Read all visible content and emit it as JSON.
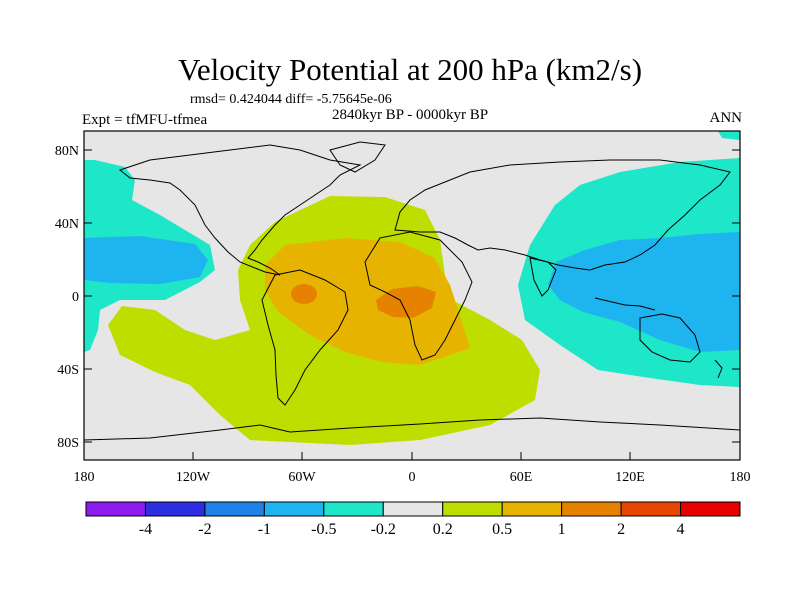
{
  "title": "Velocity Potential at 200 hPa (km2/s)",
  "stats_line": "rmsd= 0.424044 diff= -5.75645e-06",
  "period": "2840kyr BP - 0000kyr BP",
  "experiment": "Expt = tfMFU-tfmea",
  "season": "ANN",
  "lat_ticks": [
    "80N",
    "40N",
    "0",
    "40S",
    "80S"
  ],
  "lon_ticks": [
    "180",
    "120W",
    "60W",
    "0",
    "60E",
    "120E",
    "180"
  ],
  "colorbar": {
    "colors": [
      "#8c1cee",
      "#2d2de2",
      "#1e82e6",
      "#1eb4f0",
      "#1ee6c8",
      "#e6e6e6",
      "#bede00",
      "#e6b400",
      "#e68200",
      "#e64600",
      "#e60000"
    ],
    "labels": [
      "-4",
      "-2",
      "-1",
      "-0.5",
      "-0.2",
      "0.2",
      "0.5",
      "1",
      "2",
      "4"
    ]
  },
  "field_colors": {
    "background": "#e6e6e6",
    "negative_weak": "#1ee6c8",
    "negative_mid": "#1eb4f0",
    "positive_weak": "#bede00",
    "positive_mid": "#e6b400",
    "positive_strong": "#e68200"
  }
}
